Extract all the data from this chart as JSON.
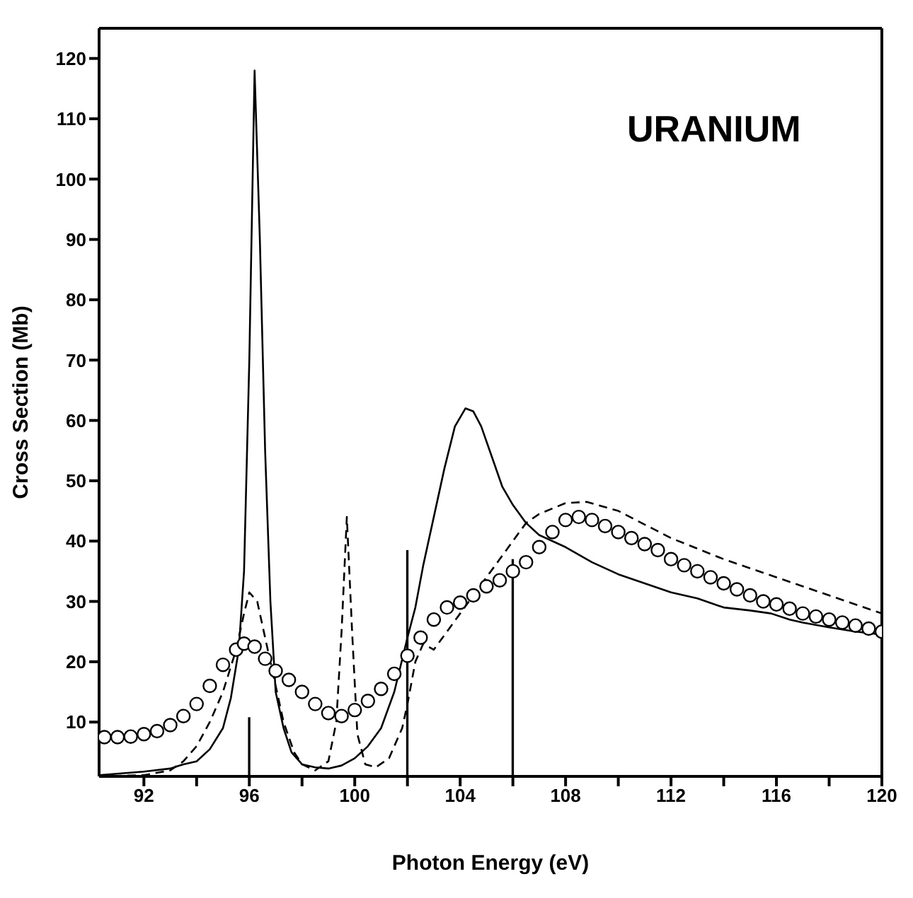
{
  "chart_data": {
    "type": "line",
    "xlabel": "Photon Energy (eV)",
    "ylabel": "Cross Section (Mb)",
    "annotations": [
      "URANIUM"
    ],
    "xlim": [
      90.3,
      120
    ],
    "ylim": [
      1,
      125
    ],
    "xticks": [
      92,
      {
        "value": 94,
        "label": null
      },
      96,
      {
        "value": 98,
        "label": null
      },
      100,
      {
        "value": 102,
        "label": null
      },
      104,
      {
        "value": 106,
        "label": null
      },
      108,
      {
        "value": 110,
        "label": null
      },
      112,
      {
        "value": 114,
        "label": null
      },
      116,
      {
        "value": 118,
        "label": null
      },
      120
    ],
    "yticks": [
      10,
      20,
      30,
      40,
      50,
      60,
      70,
      80,
      90,
      100,
      110,
      120
    ],
    "grid": false,
    "series": [
      {
        "type": "bar",
        "color": "#000000",
        "x": [
          96,
          102,
          106
        ],
        "values": [
          10.8,
          38.5,
          37
        ]
      },
      {
        "color": "#000000",
        "line_style": "solid",
        "marker": "none",
        "x": [
          90.3,
          92,
          93,
          93.5,
          94,
          94.5,
          95,
          95.3,
          95.6,
          95.8,
          96,
          96.2,
          96.4,
          96.6,
          96.8,
          97,
          97.3,
          97.6,
          98,
          98.5,
          99,
          99.5,
          100,
          100.5,
          101,
          101.5,
          102,
          102.3,
          102.6,
          103,
          103.4,
          103.8,
          104.2,
          104.5,
          104.8,
          105.2,
          105.6,
          106,
          106.5,
          107,
          107.5,
          108,
          109,
          110,
          111,
          112,
          113,
          114,
          115,
          115.8,
          116.5,
          117,
          118,
          119,
          120
        ],
        "values": [
          1.2,
          1.8,
          2.3,
          3,
          3.5,
          5.5,
          9,
          14,
          22,
          35,
          70,
          118,
          90,
          55,
          30,
          15,
          9,
          5,
          3,
          2.5,
          2.3,
          2.8,
          4,
          6,
          9,
          15,
          24,
          29,
          36,
          44,
          52,
          59,
          62,
          61.5,
          59,
          54,
          49,
          46,
          43,
          41,
          40,
          39,
          36.5,
          34.5,
          33,
          31.5,
          30.5,
          29,
          28.5,
          28,
          27,
          26.5,
          25.7,
          25,
          24.5
        ]
      },
      {
        "color": "#000000",
        "line_style": "dashed",
        "marker": "none",
        "x": [
          90.3,
          92,
          93,
          93.5,
          94,
          94.5,
          95,
          95.5,
          95.8,
          96,
          96.3,
          96.6,
          97,
          97.3,
          97.7,
          98,
          98.5,
          99,
          99.3,
          99.5,
          99.7,
          99.9,
          100.1,
          100.4,
          100.8,
          101.3,
          101.8,
          102,
          102.3,
          102.6,
          103,
          103.5,
          104,
          104.5,
          105,
          105.5,
          106,
          106.5,
          107,
          108,
          108.8,
          110,
          112,
          114,
          116,
          118,
          120
        ],
        "values": [
          1,
          1.2,
          2,
          3.5,
          6,
          10,
          15,
          22,
          28,
          31.5,
          30,
          24,
          16,
          10,
          5,
          3,
          2,
          3.5,
          10,
          25,
          44,
          25,
          8,
          3,
          2.5,
          4,
          9,
          13,
          20,
          23,
          22,
          25,
          28,
          31,
          34,
          37,
          40,
          43,
          44.5,
          46.3,
          46.5,
          45,
          40.5,
          37,
          34,
          31,
          28
        ]
      },
      {
        "type": "scatter",
        "color": "#000000",
        "marker": "circle",
        "x": [
          90.5,
          91,
          91.5,
          92,
          92.5,
          93,
          93.5,
          94,
          94.5,
          95,
          95.5,
          95.8,
          96.2,
          96.6,
          97,
          97.5,
          98,
          98.5,
          99,
          99.5,
          100,
          100.5,
          101,
          101.5,
          102,
          102.5,
          103,
          103.5,
          104,
          104.5,
          105,
          105.5,
          106,
          106.5,
          107,
          107.5,
          108,
          108.5,
          109,
          109.5,
          110,
          110.5,
          111,
          111.5,
          112,
          112.5,
          113,
          113.5,
          114,
          114.5,
          115,
          115.5,
          116,
          116.5,
          117,
          117.5,
          118,
          118.5,
          119,
          119.5,
          120
        ],
        "values": [
          7.5,
          7.5,
          7.6,
          8,
          8.5,
          9.5,
          11,
          13,
          16,
          19.5,
          22,
          23,
          22.5,
          20.5,
          18.5,
          17,
          15,
          13,
          11.5,
          11,
          12,
          13.5,
          15.5,
          18,
          21,
          24,
          27,
          29,
          29.8,
          31,
          32.5,
          33.5,
          35,
          36.5,
          39,
          41.5,
          43.5,
          44,
          43.5,
          42.5,
          41.5,
          40.5,
          39.5,
          38.5,
          37,
          36,
          35,
          34,
          33,
          32,
          31,
          30,
          29.5,
          28.8,
          28,
          27.5,
          27,
          26.5,
          26,
          25.5,
          25
        ]
      }
    ]
  }
}
